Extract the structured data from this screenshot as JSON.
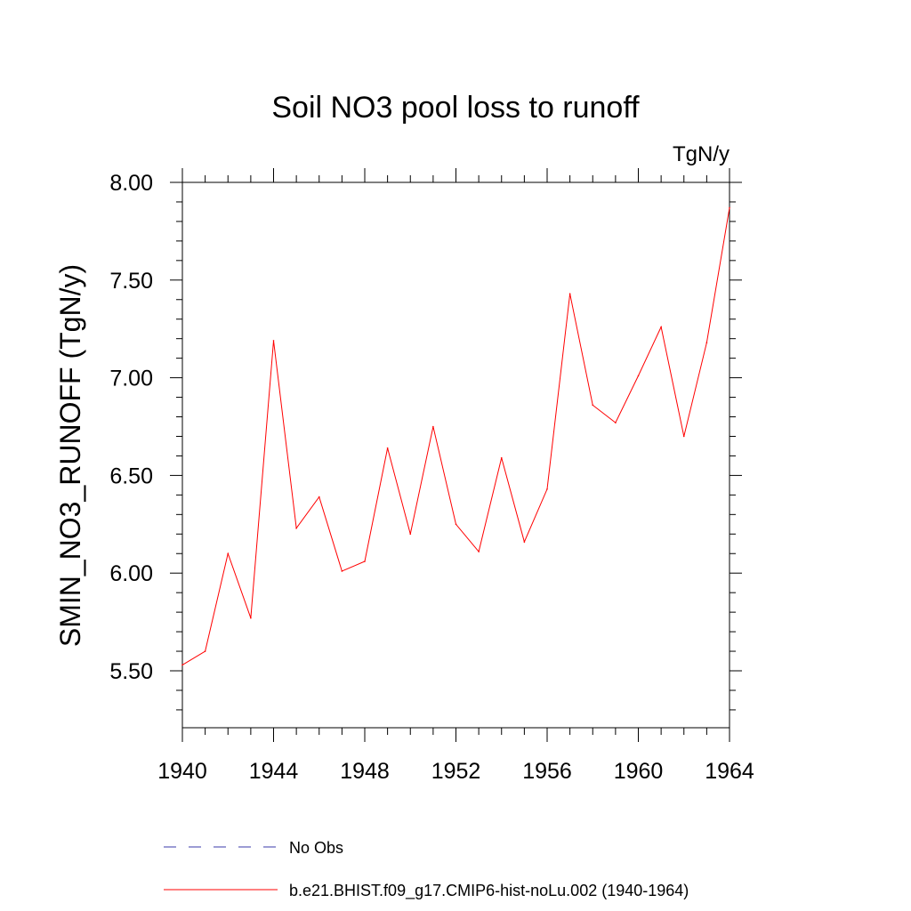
{
  "chart_data": {
    "type": "line",
    "title": "Soil NO3 pool loss to runoff",
    "units_label": "TgN/y",
    "ylabel": "SMIN_NO3_RUNOFF  (TgN/y)",
    "xlabel": "",
    "xlim": [
      1940,
      1964
    ],
    "ylim": [
      5.2,
      8.07
    ],
    "x_ticks": [
      1940,
      1944,
      1948,
      1952,
      1956,
      1960,
      1964
    ],
    "x_tick_labels": [
      "1940",
      "1944",
      "1948",
      "1952",
      "1956",
      "1960",
      "1964"
    ],
    "y_ticks": [
      5.5,
      6.0,
      6.5,
      7.0,
      7.5,
      8.0
    ],
    "y_tick_labels": [
      "5.50",
      "6.00",
      "6.50",
      "7.00",
      "7.50",
      "8.00"
    ],
    "grid": false,
    "x": [
      1940,
      1941,
      1942,
      1943,
      1944,
      1945,
      1946,
      1947,
      1948,
      1949,
      1950,
      1951,
      1952,
      1953,
      1954,
      1955,
      1956,
      1957,
      1958,
      1959,
      1960,
      1961,
      1962,
      1963,
      1964
    ],
    "series": [
      {
        "name": "b.e21.BHIST.f09_g17.CMIP6-hist-noLu.002 (1940-1964)",
        "color": "#ff0000",
        "dash": "solid",
        "values": [
          5.53,
          5.6,
          6.1,
          5.77,
          7.19,
          6.23,
          6.39,
          6.01,
          6.06,
          6.64,
          6.2,
          6.75,
          6.25,
          6.11,
          6.59,
          6.16,
          6.43,
          7.43,
          6.86,
          6.77,
          7.01,
          7.26,
          6.7,
          7.18,
          7.87
        ]
      }
    ],
    "legend": {
      "placement": "bottom",
      "entries": [
        {
          "label": "No Obs",
          "color": "#3a3aa8",
          "dash": "dashed"
        },
        {
          "label": "b.e21.BHIST.f09_g17.CMIP6-hist-noLu.002 (1940-1964)",
          "color": "#ff0000",
          "dash": "solid"
        }
      ]
    }
  }
}
